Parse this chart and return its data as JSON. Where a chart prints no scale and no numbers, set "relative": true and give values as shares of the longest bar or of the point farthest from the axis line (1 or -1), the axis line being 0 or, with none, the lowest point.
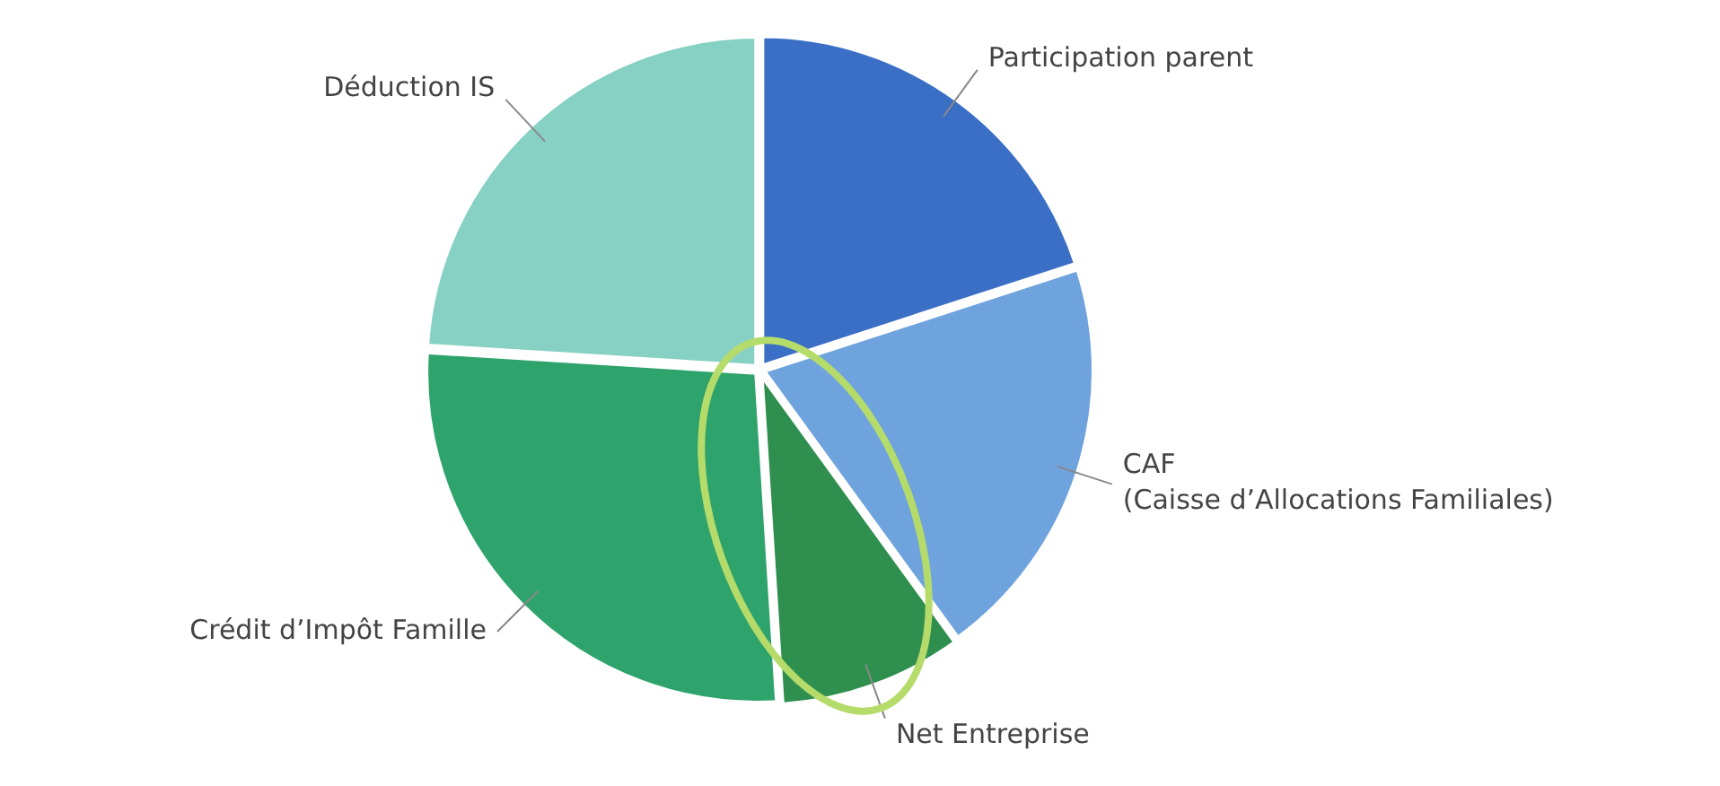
{
  "chart_data": {
    "type": "pie",
    "relative": true,
    "categories": [
      "Participation parent",
      "CAF\n(Caisse d’Allocations Familiales)",
      "Net Entreprise",
      "Crédit d’Impôt Famille",
      "Déduction IS"
    ],
    "values": [
      20,
      20,
      9,
      27,
      24
    ],
    "colors": [
      "#3b6fc6",
      "#6fa3dd",
      "#2f8f4e",
      "#2ea46c",
      "#86d1c3"
    ],
    "legend": false
  }
}
